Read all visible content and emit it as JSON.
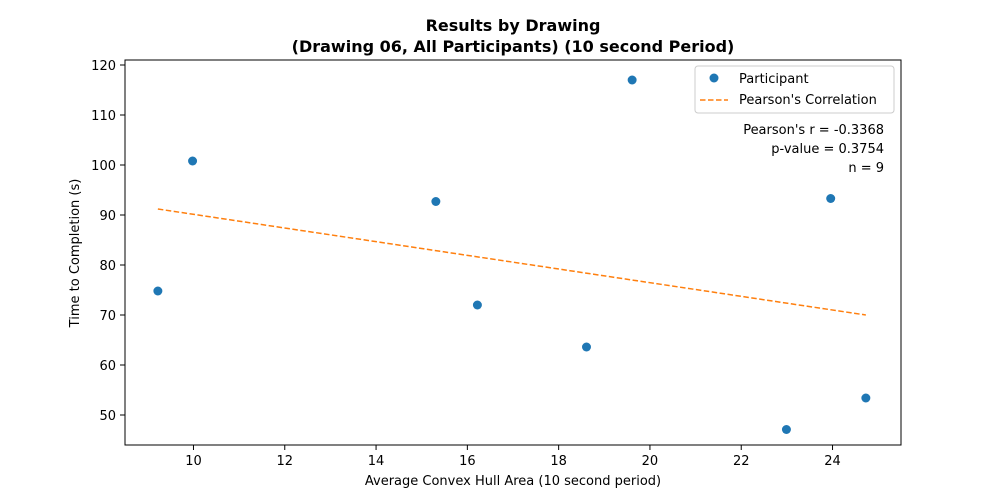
{
  "chart_data": {
    "type": "scatter",
    "title_line1": "Results by Drawing",
    "title_line2": "(Drawing 06, All Participants) (10 second Period)",
    "xlabel": "Average Convex Hull Area (10 second period)",
    "ylabel": "Time to Completion (s)",
    "xlim": [
      8.5,
      25.5
    ],
    "ylim": [
      44,
      121
    ],
    "xticks": [
      10,
      12,
      14,
      16,
      18,
      20,
      22,
      24
    ],
    "yticks": [
      50,
      60,
      70,
      80,
      90,
      100,
      110,
      120
    ],
    "grid": false,
    "legend_position": "top-right",
    "series": [
      {
        "name": "Participant",
        "kind": "scatter",
        "color": "#1f77b4",
        "x": [
          9.22,
          9.98,
          15.31,
          16.22,
          18.61,
          19.61,
          22.99,
          23.96,
          24.73
        ],
        "y": [
          74.8,
          100.8,
          92.7,
          72.0,
          63.6,
          117.0,
          47.1,
          93.3,
          53.4
        ]
      },
      {
        "name": "Pearson's Correlation",
        "kind": "line",
        "style": "dashed",
        "color": "#ff7f0e",
        "x": [
          9.22,
          24.73
        ],
        "y": [
          91.2,
          70.0
        ]
      }
    ],
    "stats": {
      "r_text": "Pearson's r = -0.3368",
      "p_text": "p-value = 0.3754",
      "n_text": "n = 9"
    }
  }
}
